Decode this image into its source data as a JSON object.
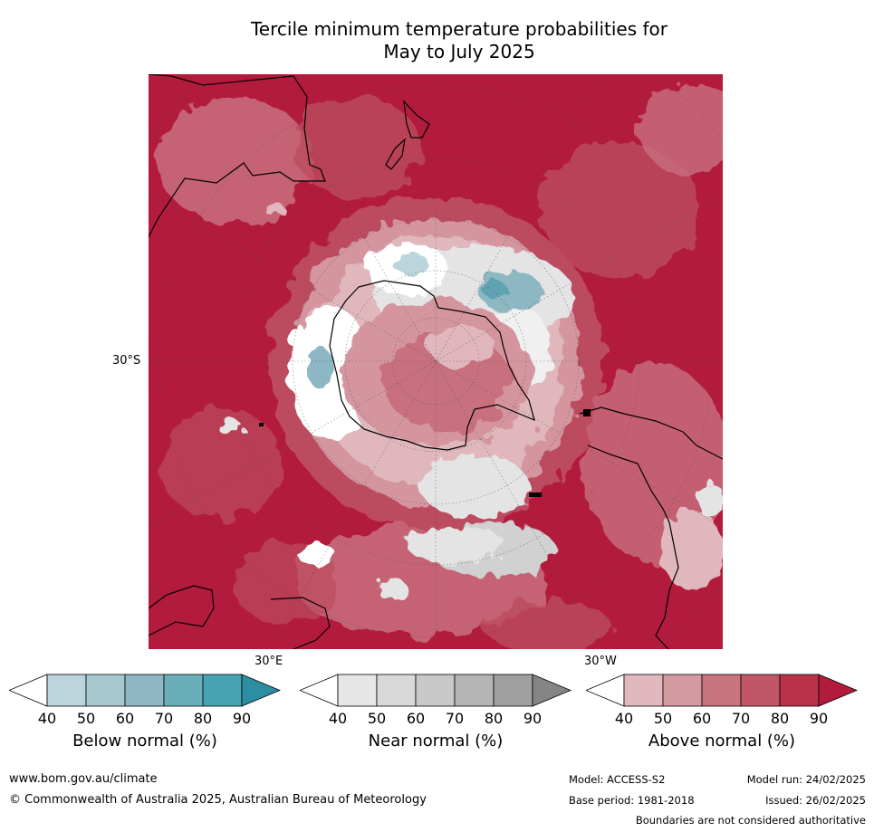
{
  "title_line1": "Tercile minimum temperature probabilities for",
  "title_line2": "May to July 2025",
  "map": {
    "lat_label": "30°S",
    "lon_label_left": "30°E",
    "lon_label_right": "30°W",
    "colors": {
      "ocean_dark": "#b31b3c",
      "warm_1": "#e0b7bd",
      "warm_2": "#d4959f",
      "warm_3": "#c8707e",
      "warm_4": "#bc4c5e",
      "near_1": "#e4e4e4",
      "near_2": "#d1d1d1",
      "cool_1": "#bcd5dc",
      "cool_2": "#8cb7c3",
      "cool_3": "#5fa3b2"
    }
  },
  "legends": [
    {
      "caption": "Below normal (%)",
      "ticks": [
        "40",
        "50",
        "60",
        "70",
        "80",
        "90"
      ],
      "colors": [
        "#ffffff",
        "#bcd5dc",
        "#a8c8cf",
        "#8eb6c3",
        "#6aaeba",
        "#47a2b2",
        "#2b8ea2"
      ]
    },
    {
      "caption": "Near normal (%)",
      "ticks": [
        "40",
        "50",
        "60",
        "70",
        "80",
        "90"
      ],
      "colors": [
        "#ffffff",
        "#e6e6e6",
        "#d9d9d9",
        "#c8c8c8",
        "#b5b5b5",
        "#a0a0a0",
        "#858585"
      ]
    },
    {
      "caption": "Above normal (%)",
      "ticks": [
        "40",
        "50",
        "60",
        "70",
        "80",
        "90"
      ],
      "colors": [
        "#ffffff",
        "#e1b8bd",
        "#d49aa2",
        "#c8737e",
        "#c05766",
        "#b83348",
        "#b31b3c"
      ]
    }
  ],
  "footer": {
    "url": "www.bom.gov.au/climate",
    "copyright": "© Commonwealth of Australia 2025, Australian Bureau of Meteorology",
    "model": "Model: ACCESS-S2",
    "model_run": "Model run: 24/02/2025",
    "base_period": "Base period: 1981-2018",
    "issued": "Issued: 26/02/2025",
    "disclaimer": "Boundaries are not considered authoritative"
  }
}
